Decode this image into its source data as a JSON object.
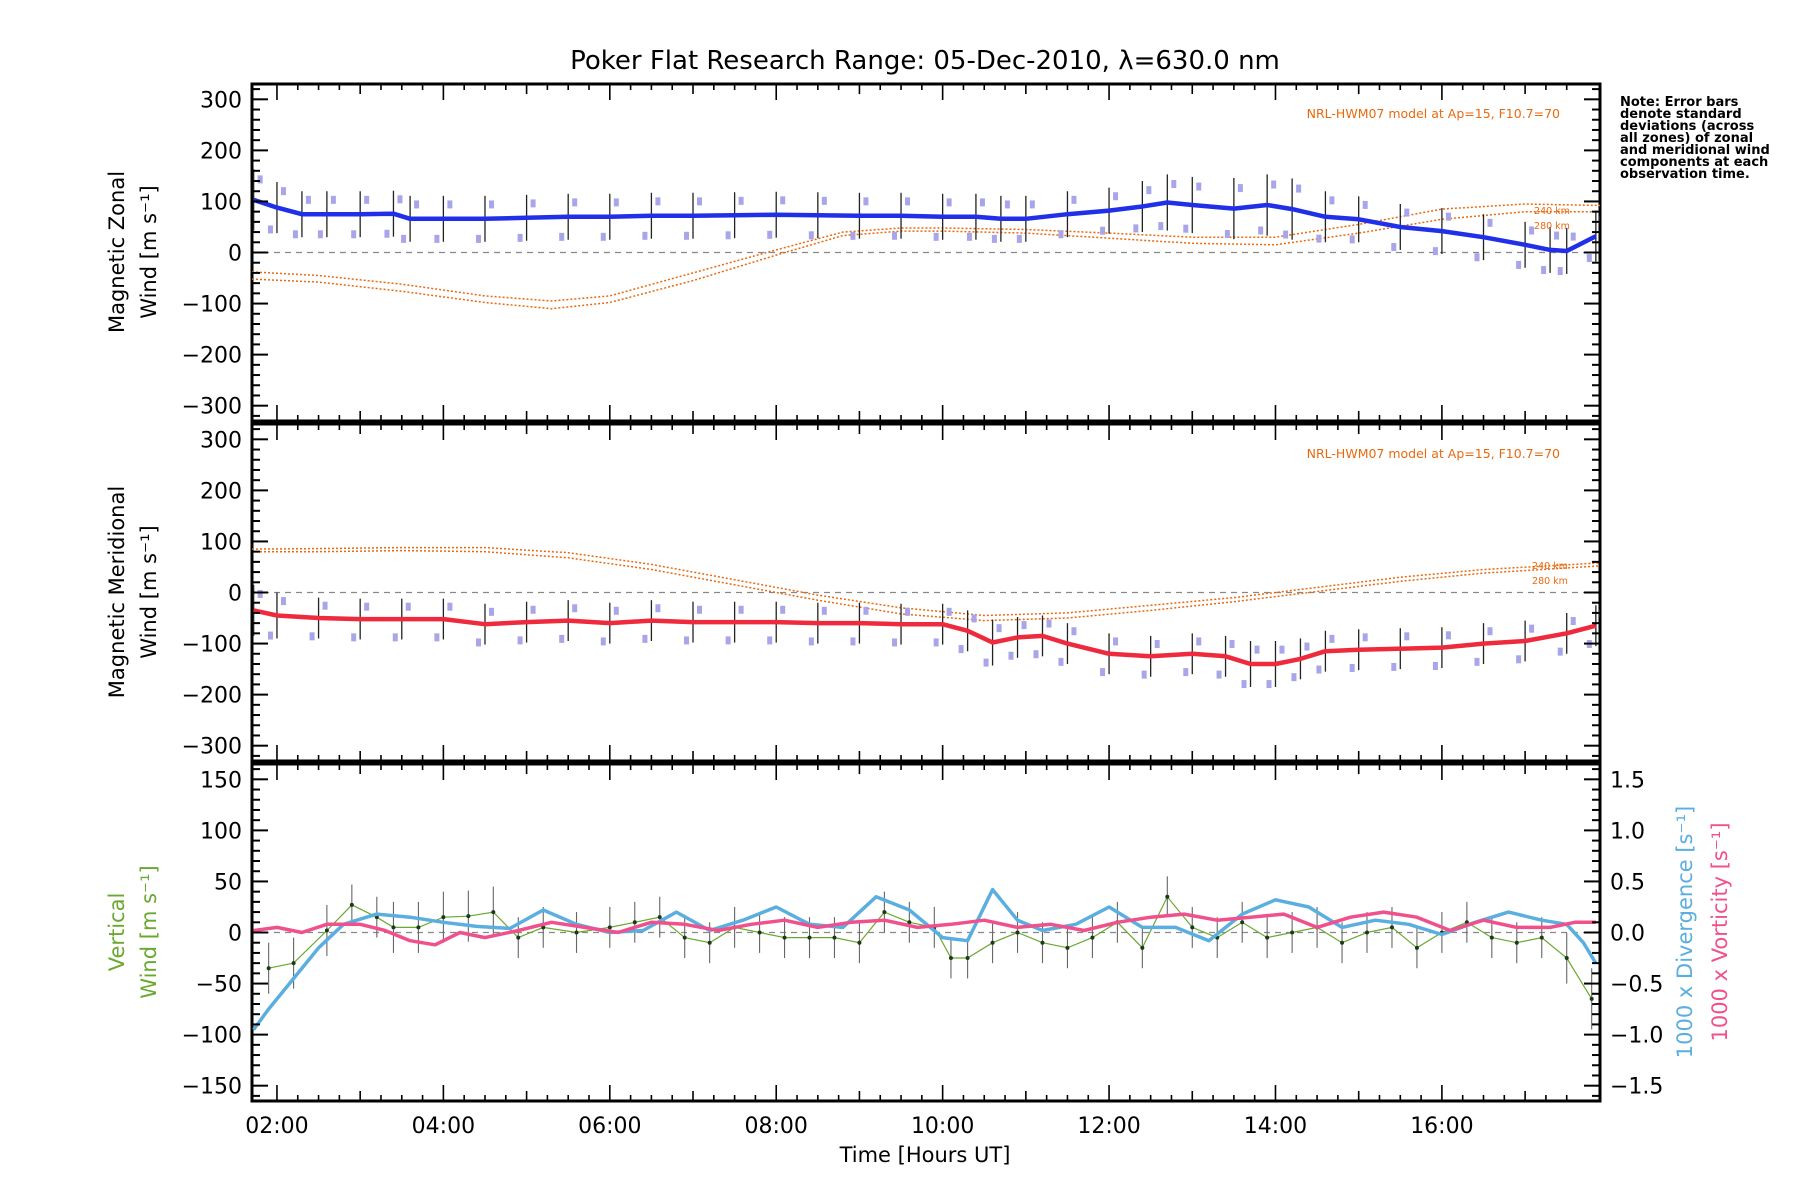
{
  "colors": {
    "zonal": "#2030e8",
    "meridional": "#ee2a3c",
    "model": "#e86a10",
    "vertical": "#6aa830",
    "divergence": "#5aaee0",
    "vorticity": "#f0508c",
    "zone_points": "#a8a6e8"
  },
  "chart_data": {
    "type": "line",
    "title": "Poker Flat Research Range: 05-Dec-2010, λ=630.0 nm",
    "xlabel": "Time [Hours UT]",
    "x_ticks": [
      "02:00",
      "04:00",
      "06:00",
      "08:00",
      "10:00",
      "12:00",
      "14:00",
      "16:00"
    ],
    "x_tick_hours": [
      2,
      4,
      6,
      8,
      10,
      12,
      14,
      16
    ],
    "xlim": [
      1.7,
      17.9
    ],
    "note": "Note: Error bars denote standard deviations (across all zones) of zonal and meridional wind components at each observation time.",
    "panels": [
      {
        "name": "zonal",
        "ylabel_line1": "Magnetic Zonal",
        "ylabel_line2": "Wind [m s⁻¹]",
        "ylim": [
          -330,
          330
        ],
        "y_ticks": [
          "300",
          "200",
          "100",
          "0",
          "−100",
          "−200",
          "−300"
        ],
        "y_tick_values": [
          300,
          200,
          100,
          0,
          -100,
          -200,
          -300
        ],
        "model_label": "NRL-HWM07 model at Ap=15, F10.7=70",
        "model_alt_labels": [
          "240 km",
          "280 km"
        ],
        "series": {
          "name": "Magnetic Zonal Wind",
          "x": [
            1.72,
            2.0,
            2.3,
            2.6,
            3.0,
            3.4,
            3.6,
            4.0,
            4.5,
            5.0,
            5.5,
            6.0,
            6.5,
            7.0,
            7.5,
            8.0,
            8.5,
            9.0,
            9.5,
            10.0,
            10.4,
            10.7,
            11.0,
            11.5,
            12.0,
            12.4,
            12.7,
            13.0,
            13.5,
            13.9,
            14.2,
            14.6,
            15.0,
            15.5,
            16.0,
            16.5,
            17.0,
            17.3,
            17.5,
            17.85
          ],
          "y": [
            103,
            88,
            75,
            75,
            75,
            76,
            66,
            66,
            66,
            68,
            70,
            70,
            72,
            72,
            73,
            74,
            73,
            72,
            72,
            70,
            70,
            66,
            66,
            75,
            82,
            90,
            98,
            93,
            86,
            93,
            85,
            70,
            65,
            50,
            42,
            30,
            15,
            5,
            3,
            32
          ],
          "err": [
            60,
            50,
            45,
            45,
            45,
            45,
            45,
            45,
            45,
            45,
            45,
            45,
            45,
            45,
            45,
            45,
            45,
            45,
            45,
            45,
            45,
            45,
            45,
            45,
            45,
            50,
            55,
            55,
            60,
            60,
            60,
            50,
            45,
            45,
            45,
            45,
            45,
            45,
            45,
            50
          ]
        },
        "model_240": {
          "x": [
            1.7,
            2.5,
            3.5,
            4.5,
            5.3,
            6.0,
            7.0,
            8.0,
            8.8,
            9.5,
            10.0,
            11.0,
            12.0,
            13.0,
            14.0,
            15.0,
            16.0,
            17.0,
            17.9
          ],
          "y": [
            -38,
            -45,
            -62,
            -85,
            -95,
            -85,
            -40,
            5,
            40,
            48,
            48,
            45,
            38,
            30,
            30,
            55,
            85,
            95,
            92
          ]
        },
        "model_280": {
          "x": [
            1.7,
            2.5,
            3.5,
            4.5,
            5.3,
            6.0,
            7.0,
            8.0,
            8.8,
            9.5,
            10.0,
            11.0,
            12.0,
            13.0,
            14.0,
            15.0,
            16.0,
            17.0,
            17.9
          ],
          "y": [
            -52,
            -58,
            -76,
            -98,
            -110,
            -98,
            -55,
            -5,
            33,
            42,
            42,
            38,
            28,
            18,
            15,
            38,
            65,
            80,
            80
          ]
        }
      },
      {
        "name": "meridional",
        "ylabel_line1": "Magnetic Meridional",
        "ylabel_line2": "Wind [m s⁻¹]",
        "ylim": [
          -330,
          330
        ],
        "y_ticks": [
          "300",
          "200",
          "100",
          "0",
          "−100",
          "−200",
          "−300"
        ],
        "y_tick_values": [
          300,
          200,
          100,
          0,
          -100,
          -200,
          -300
        ],
        "model_label": "NRL-HWM07 model at Ap=15, F10.7=70",
        "model_alt_labels": [
          "240 km",
          "280 km"
        ],
        "series": {
          "name": "Magnetic Meridional Wind",
          "x": [
            1.72,
            2.0,
            2.5,
            3.0,
            3.5,
            4.0,
            4.5,
            5.0,
            5.5,
            6.0,
            6.5,
            7.0,
            7.5,
            8.0,
            8.5,
            9.0,
            9.5,
            10.0,
            10.3,
            10.6,
            10.9,
            11.2,
            11.5,
            12.0,
            12.5,
            13.0,
            13.4,
            13.7,
            14.0,
            14.3,
            14.6,
            15.0,
            15.5,
            16.0,
            16.5,
            17.0,
            17.5,
            17.85
          ],
          "y": [
            -35,
            -45,
            -50,
            -52,
            -52,
            -52,
            -62,
            -58,
            -55,
            -60,
            -55,
            -58,
            -58,
            -58,
            -60,
            -60,
            -62,
            -62,
            -75,
            -98,
            -88,
            -85,
            -100,
            -120,
            -125,
            -120,
            -125,
            -140,
            -140,
            -130,
            -115,
            -112,
            -110,
            -108,
            -100,
            -95,
            -80,
            -65
          ],
          "err": [
            50,
            45,
            40,
            40,
            40,
            40,
            40,
            40,
            40,
            40,
            40,
            40,
            40,
            40,
            40,
            40,
            40,
            40,
            40,
            45,
            40,
            40,
            40,
            40,
            40,
            40,
            40,
            45,
            45,
            40,
            40,
            40,
            40,
            40,
            40,
            40,
            40,
            40
          ]
        },
        "model_240": {
          "x": [
            1.7,
            2.5,
            3.5,
            4.5,
            5.5,
            6.5,
            7.5,
            8.5,
            9.5,
            10.5,
            11.5,
            12.5,
            13.5,
            14.5,
            15.5,
            16.5,
            17.9
          ],
          "y": [
            85,
            86,
            88,
            88,
            78,
            55,
            25,
            -5,
            -30,
            -45,
            -40,
            -25,
            -10,
            10,
            30,
            45,
            58
          ]
        },
        "model_280": {
          "x": [
            1.7,
            2.5,
            3.5,
            4.5,
            5.5,
            6.5,
            7.5,
            8.5,
            9.5,
            10.5,
            11.5,
            12.5,
            13.5,
            14.5,
            15.5,
            16.5,
            17.9
          ],
          "y": [
            80,
            80,
            82,
            80,
            68,
            45,
            15,
            -15,
            -42,
            -55,
            -50,
            -35,
            -18,
            2,
            22,
            38,
            52
          ]
        }
      },
      {
        "name": "vertical",
        "ylabel_line1": "Vertical",
        "ylabel_line2": "Wind [m s⁻¹]",
        "ylim": [
          -165,
          165
        ],
        "y_ticks": [
          "150",
          "100",
          "50",
          "0",
          "−50",
          "−100",
          "−150"
        ],
        "y_tick_values": [
          150,
          100,
          50,
          0,
          -50,
          -100,
          -150
        ],
        "y2_label_divergence": "1000 x Divergence [s⁻¹]",
        "y2_label_vorticity": "1000 x Vorticity [s⁻¹]",
        "y2_ticks": [
          "1.5",
          "1.0",
          "0.5",
          "0.0",
          "−0.5",
          "−1.0",
          "−1.5"
        ],
        "y2_tick_values": [
          1.5,
          1.0,
          0.5,
          0.0,
          -0.5,
          -1.0,
          -1.5
        ],
        "y2lim": [
          -1.65,
          1.65
        ],
        "vertical_wind": {
          "x": [
            1.9,
            2.2,
            2.6,
            2.9,
            3.2,
            3.4,
            3.7,
            4.0,
            4.3,
            4.6,
            4.9,
            5.2,
            5.6,
            6.0,
            6.3,
            6.6,
            6.9,
            7.2,
            7.5,
            7.8,
            8.1,
            8.4,
            8.7,
            9.0,
            9.3,
            9.6,
            9.9,
            10.1,
            10.3,
            10.6,
            10.9,
            11.2,
            11.5,
            11.8,
            12.1,
            12.4,
            12.7,
            13.0,
            13.3,
            13.6,
            13.9,
            14.2,
            14.5,
            14.8,
            15.1,
            15.4,
            15.7,
            16.0,
            16.3,
            16.6,
            16.9,
            17.2,
            17.5,
            17.8
          ],
          "y": [
            -35,
            -30,
            2,
            27,
            15,
            5,
            5,
            15,
            16,
            20,
            -5,
            5,
            0,
            5,
            10,
            15,
            -5,
            -10,
            5,
            0,
            -5,
            -5,
            -5,
            -10,
            20,
            10,
            5,
            -25,
            -25,
            -10,
            0,
            -10,
            -15,
            -5,
            10,
            -15,
            35,
            5,
            -5,
            10,
            -5,
            0,
            5,
            -10,
            0,
            5,
            -15,
            0,
            10,
            -5,
            -10,
            -5,
            -25,
            -65
          ],
          "err": [
            25,
            25,
            25,
            20,
            20,
            25,
            25,
            25,
            25,
            25,
            20,
            20,
            20,
            20,
            20,
            20,
            20,
            20,
            20,
            20,
            20,
            20,
            20,
            20,
            20,
            20,
            20,
            20,
            20,
            20,
            20,
            20,
            20,
            20,
            20,
            20,
            20,
            20,
            20,
            20,
            20,
            20,
            20,
            20,
            20,
            20,
            20,
            20,
            20,
            20,
            20,
            20,
            25,
            30
          ]
        },
        "divergence": {
          "x": [
            1.72,
            1.9,
            2.2,
            2.5,
            2.8,
            3.2,
            3.6,
            4.0,
            4.4,
            4.8,
            5.2,
            5.6,
            6.0,
            6.4,
            6.8,
            7.2,
            7.6,
            8.0,
            8.4,
            8.8,
            9.2,
            9.6,
            10.0,
            10.3,
            10.6,
            10.9,
            11.2,
            11.6,
            12.0,
            12.4,
            12.8,
            13.2,
            13.6,
            14.0,
            14.4,
            14.8,
            15.2,
            15.6,
            16.0,
            16.4,
            16.8,
            17.2,
            17.5,
            17.7,
            17.85
          ],
          "y": [
            -0.95,
            -0.75,
            -0.45,
            -0.15,
            0.08,
            0.18,
            0.15,
            0.1,
            0.06,
            0.04,
            0.22,
            0.08,
            0.0,
            0.02,
            0.2,
            0.02,
            0.12,
            0.25,
            0.08,
            0.05,
            0.35,
            0.22,
            -0.05,
            -0.08,
            0.42,
            0.12,
            0.02,
            0.08,
            0.25,
            0.05,
            0.05,
            -0.08,
            0.18,
            0.32,
            0.25,
            0.05,
            0.12,
            0.08,
            -0.02,
            0.1,
            0.2,
            0.12,
            0.08,
            -0.1,
            -0.3
          ],
          "err": []
        },
        "vorticity": {
          "x": [
            1.72,
            2.0,
            2.3,
            2.6,
            3.0,
            3.3,
            3.6,
            3.9,
            4.2,
            4.5,
            4.9,
            5.3,
            5.7,
            6.1,
            6.5,
            6.9,
            7.3,
            7.7,
            8.1,
            8.5,
            8.9,
            9.3,
            9.7,
            10.1,
            10.5,
            10.9,
            11.3,
            11.7,
            12.1,
            12.5,
            12.9,
            13.3,
            13.7,
            14.1,
            14.5,
            14.9,
            15.3,
            15.7,
            16.1,
            16.5,
            16.9,
            17.3,
            17.6,
            17.85
          ],
          "y": [
            0.02,
            0.05,
            0.0,
            0.08,
            0.08,
            0.02,
            -0.08,
            -0.12,
            0.0,
            -0.05,
            0.02,
            0.1,
            0.05,
            0.0,
            0.1,
            0.08,
            0.02,
            0.08,
            0.12,
            0.05,
            0.1,
            0.12,
            0.05,
            0.08,
            0.12,
            0.05,
            0.08,
            0.02,
            0.1,
            0.15,
            0.18,
            0.12,
            0.15,
            0.18,
            0.05,
            0.15,
            0.2,
            0.15,
            0.02,
            0.12,
            0.05,
            0.05,
            0.1,
            0.1
          ]
        }
      }
    ]
  }
}
